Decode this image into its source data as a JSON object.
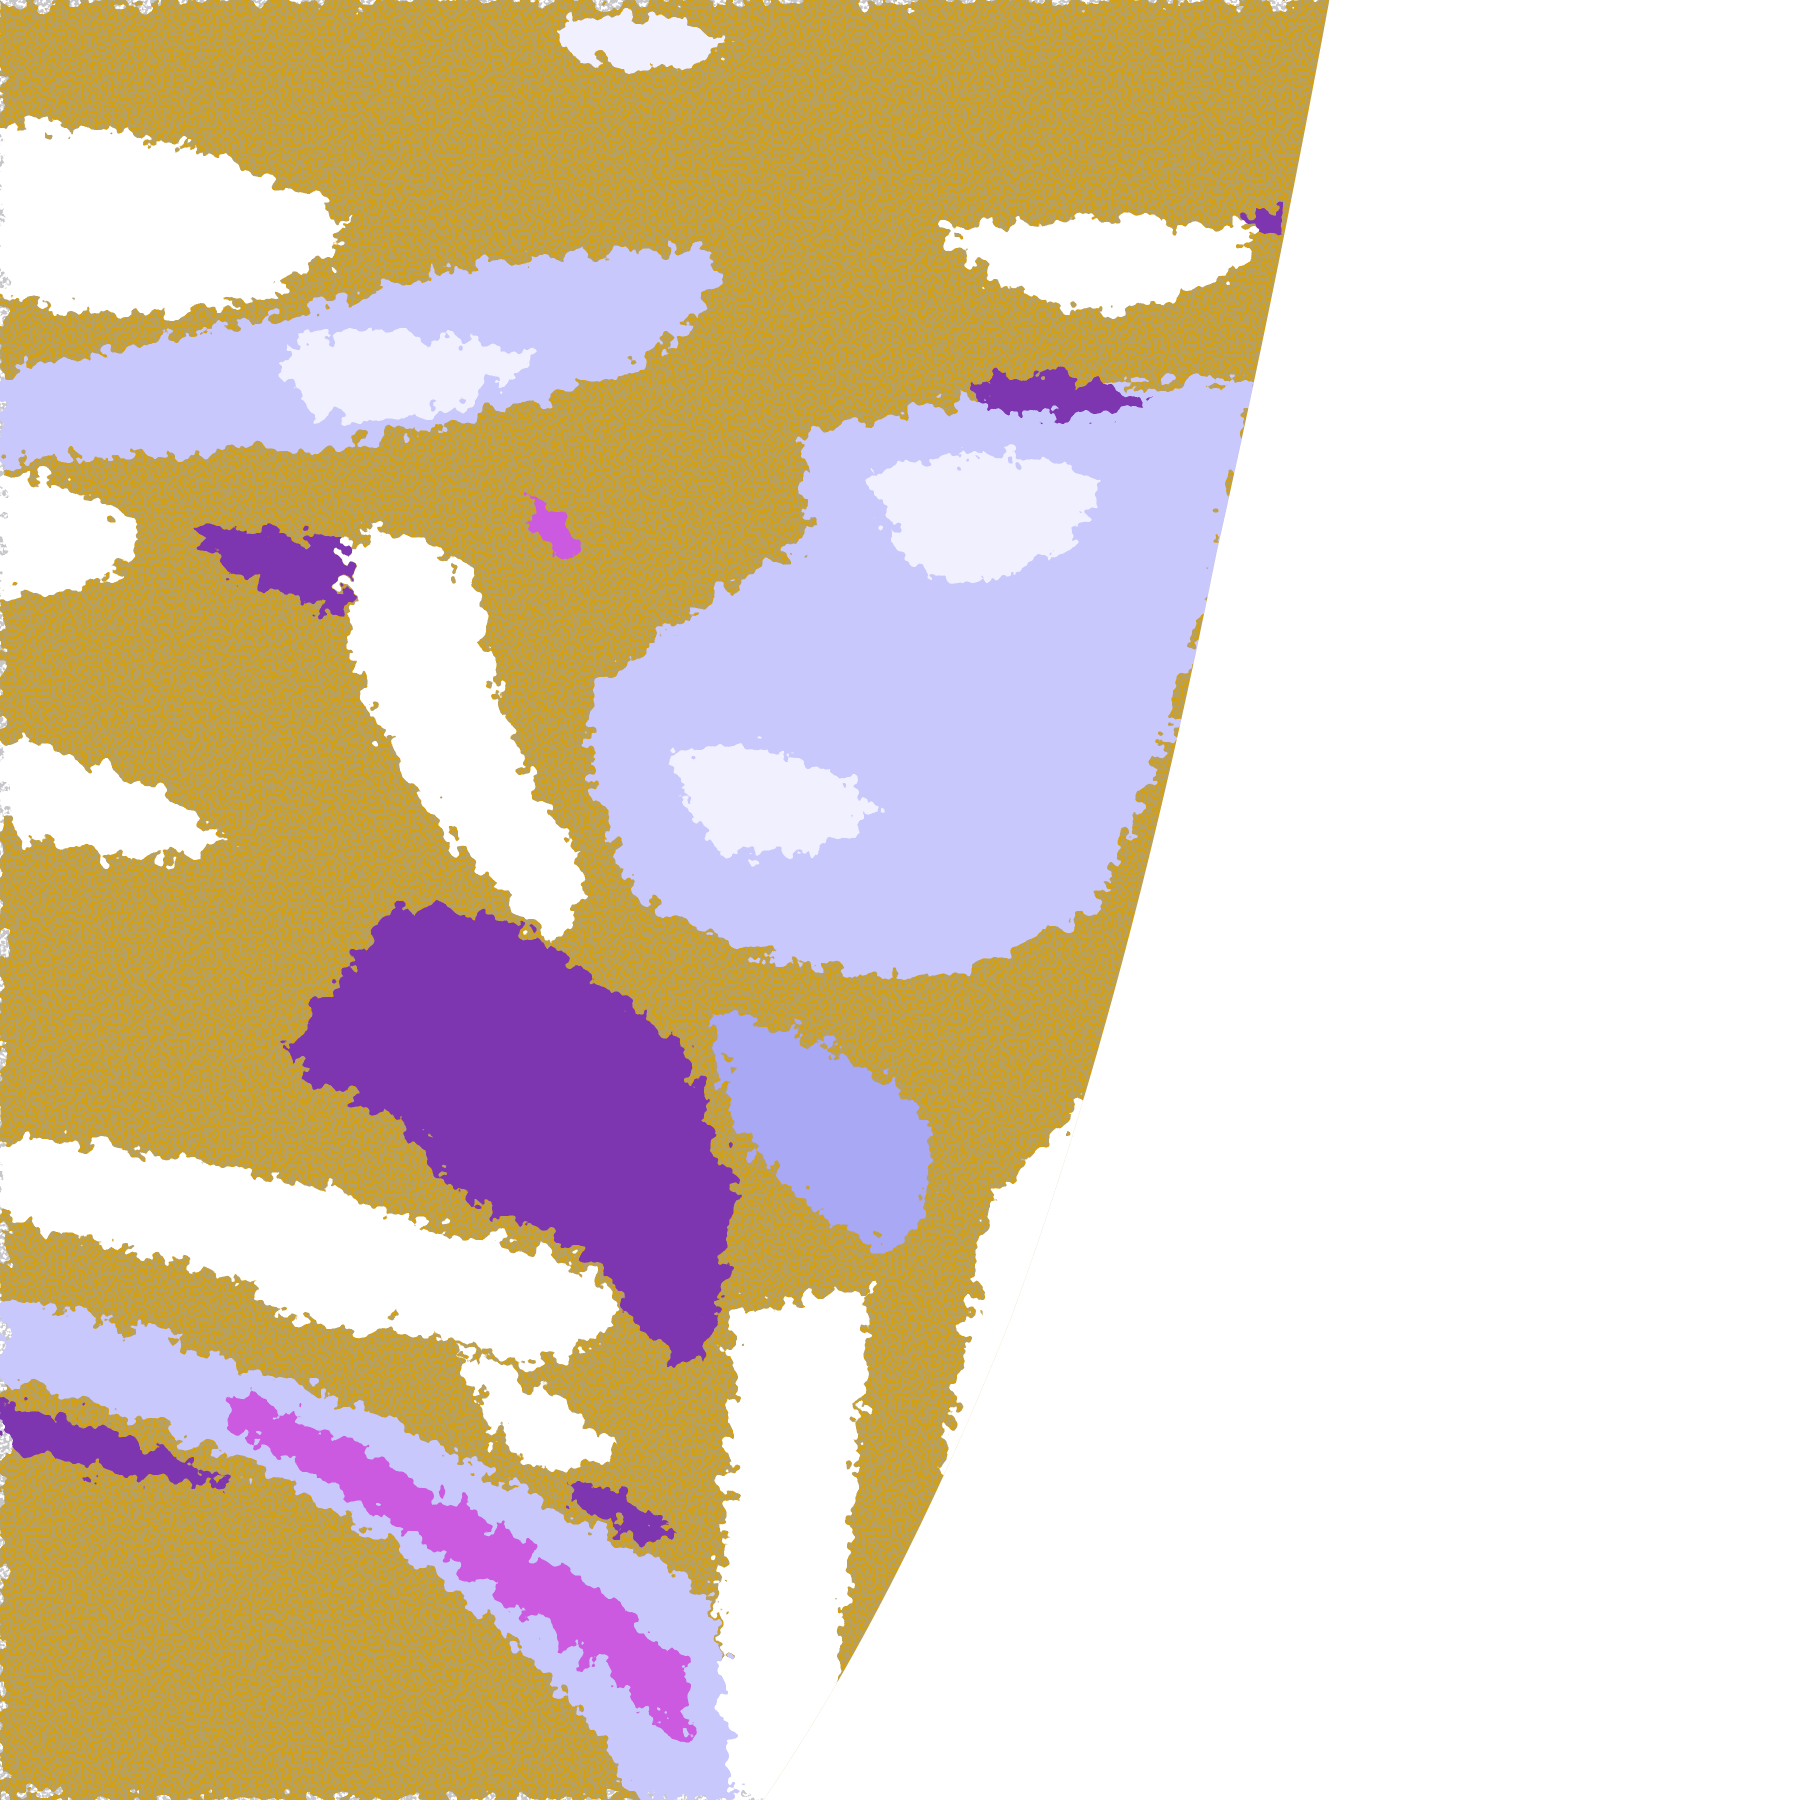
{
  "map": {
    "type": "classified satellite swath",
    "swath_edge": "right",
    "palette": {
      "background": "#ffffff",
      "gold": "#d4a010",
      "deep_purple": "#7d35b0",
      "magenta": "#cc5ae0",
      "periwinkle": "#a8a8f4",
      "lavender": "#c8c8fc",
      "pale": "#f0f0ff",
      "gray": "#a0a0a8"
    }
  }
}
